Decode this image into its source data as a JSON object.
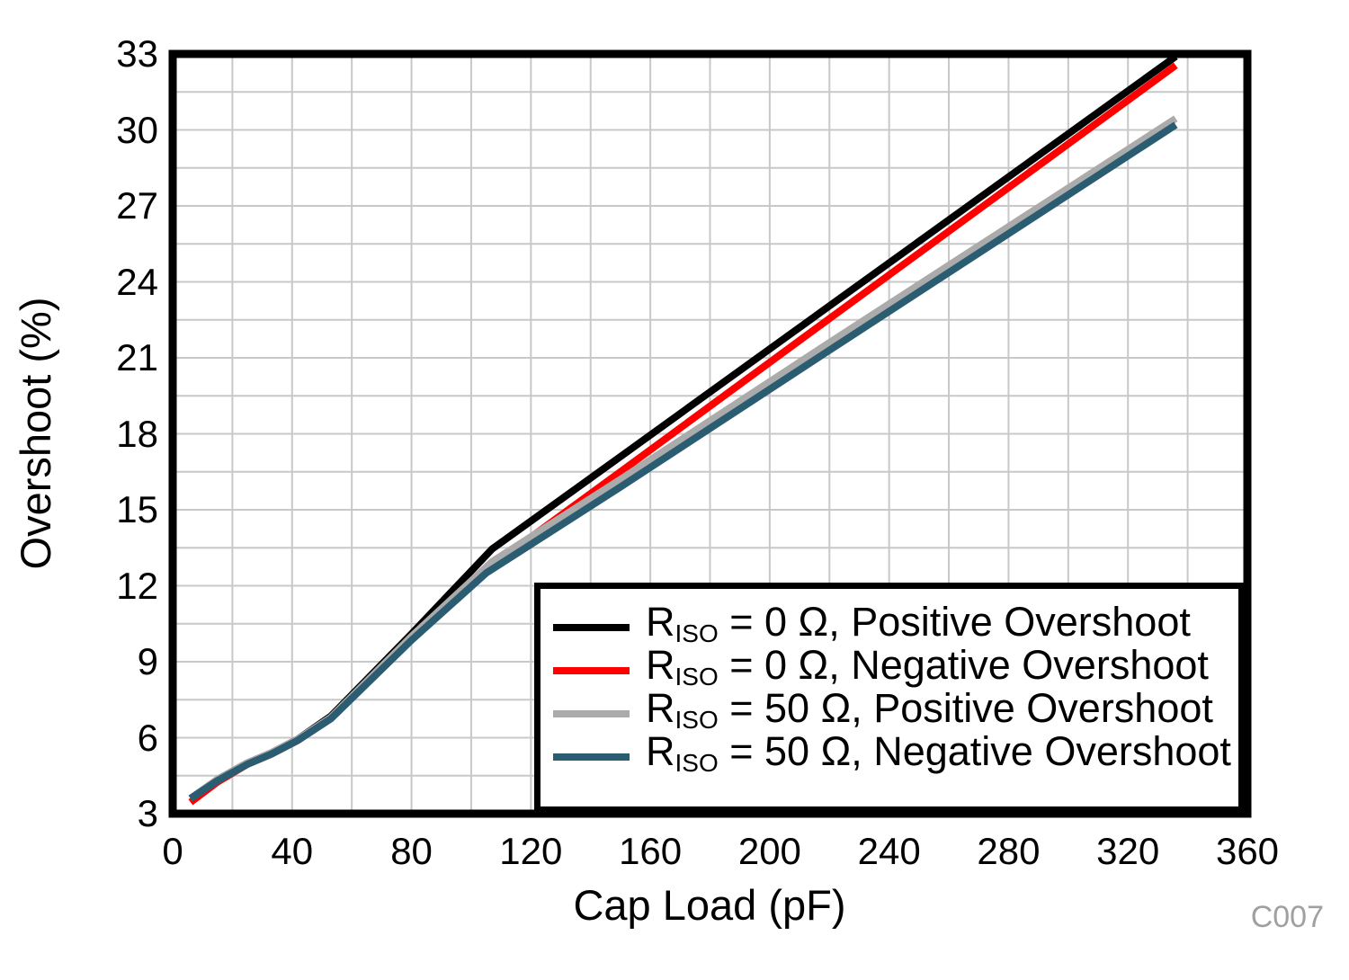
{
  "watermark": "C007",
  "chart_data": {
    "type": "line",
    "title": "",
    "xlabel": "Cap Load (pF)",
    "ylabel": "Overshoot (%)",
    "xlim": [
      0,
      360
    ],
    "ylim": [
      3,
      33
    ],
    "x_ticks": [
      0,
      40,
      80,
      120,
      160,
      200,
      240,
      280,
      320,
      360
    ],
    "y_ticks": [
      3,
      6,
      9,
      12,
      15,
      18,
      21,
      24,
      27,
      30,
      33
    ],
    "x_minor_step": 20,
    "y_minor_step": 1.5,
    "grid": true,
    "grid_color": "#C8C8C8",
    "frame_color": "#000000",
    "legend_position": "lower right",
    "series": [
      {
        "id": "riso-0-positive",
        "name": "RISO = 0 Ohm, Positive Overshoot",
        "label": {
          "base": "R",
          "sub": "ISO",
          "rest": " = 0 Ω, Positive Overshoot"
        },
        "color": "#000000",
        "points": [
          [
            6,
            3.6
          ],
          [
            15,
            4.35
          ],
          [
            25,
            5.0
          ],
          [
            33,
            5.4
          ],
          [
            42,
            5.95
          ],
          [
            53,
            6.85
          ],
          [
            80,
            10.1
          ],
          [
            107,
            13.45
          ],
          [
            150,
            17.1
          ],
          [
            220,
            23.05
          ],
          [
            336,
            32.9
          ]
        ]
      },
      {
        "id": "riso-0-negative",
        "name": "RISO = 0 Ohm, Negative Overshoot",
        "label": {
          "base": "R",
          "sub": "ISO",
          "rest": " = 0 Ω, Negative Overshoot"
        },
        "color": "#FF0000",
        "points": [
          [
            6,
            3.45
          ],
          [
            15,
            4.25
          ],
          [
            25,
            4.95
          ],
          [
            33,
            5.35
          ],
          [
            42,
            5.9
          ],
          [
            53,
            6.8
          ],
          [
            80,
            9.95
          ],
          [
            107,
            12.8
          ],
          [
            150,
            16.5
          ],
          [
            220,
            22.55
          ],
          [
            336,
            32.55
          ]
        ]
      },
      {
        "id": "riso-50-positive",
        "name": "RISO = 50 Ohm, Positive Overshoot",
        "label": {
          "base": "R",
          "sub": "ISO",
          "rest": " = 50 Ω, Positive Overshoot"
        },
        "color": "#ABABAB",
        "points": [
          [
            6,
            3.6
          ],
          [
            15,
            4.35
          ],
          [
            25,
            5.0
          ],
          [
            33,
            5.4
          ],
          [
            42,
            5.95
          ],
          [
            53,
            6.8
          ],
          [
            80,
            10.0
          ],
          [
            107,
            12.95
          ],
          [
            150,
            16.2
          ],
          [
            220,
            21.6
          ],
          [
            336,
            30.45
          ]
        ]
      },
      {
        "id": "riso-50-negative",
        "name": "RISO = 50 Ohm, Negative Overshoot",
        "label": {
          "base": "R",
          "sub": "ISO",
          "rest": " = 50 Ω, Negative Overshoot"
        },
        "color": "#2B5D72",
        "points": [
          [
            6,
            3.6
          ],
          [
            15,
            4.3
          ],
          [
            25,
            4.95
          ],
          [
            33,
            5.35
          ],
          [
            42,
            5.9
          ],
          [
            53,
            6.75
          ],
          [
            80,
            9.85
          ],
          [
            105,
            12.5
          ],
          [
            150,
            15.9
          ],
          [
            220,
            21.3
          ],
          [
            336,
            30.2
          ]
        ]
      }
    ]
  }
}
